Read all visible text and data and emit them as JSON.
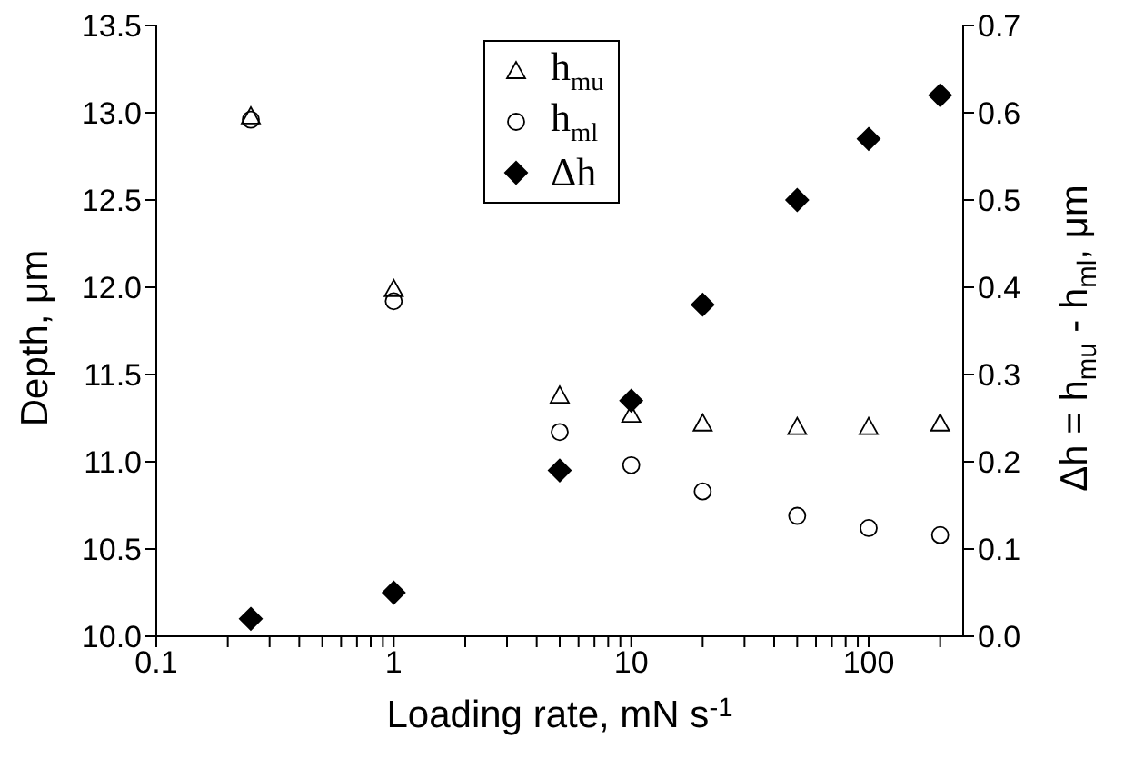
{
  "chart_data": {
    "type": "scatter",
    "xlabel": "Loading rate, mN s$^{-1}$",
    "ylabel": "Depth, μm",
    "y2label": "Δh = h$_{mu}$ - h$_{ml}$, μm",
    "x": [
      0.25,
      1,
      5,
      10,
      20,
      50,
      100,
      200
    ],
    "log": "x",
    "legend": "top",
    "grid": false,
    "xlim": [
      0.1,
      250
    ],
    "xticks": [
      0.1,
      {
        "value": 0.2,
        "label": null
      },
      {
        "value": 0.3,
        "label": null
      },
      {
        "value": 0.4,
        "label": null
      },
      {
        "value": 0.5,
        "label": null
      },
      {
        "value": 0.6,
        "label": null
      },
      {
        "value": 0.7,
        "label": null
      },
      {
        "value": 0.8,
        "label": null
      },
      {
        "value": 0.9,
        "label": null
      },
      1,
      {
        "value": 2,
        "label": null
      },
      {
        "value": 3,
        "label": null
      },
      {
        "value": 4,
        "label": null
      },
      {
        "value": 5,
        "label": null
      },
      {
        "value": 6,
        "label": null
      },
      {
        "value": 7,
        "label": null
      },
      {
        "value": 8,
        "label": null
      },
      {
        "value": 9,
        "label": null
      },
      10,
      {
        "value": 20,
        "label": null
      },
      {
        "value": 30,
        "label": null
      },
      {
        "value": 40,
        "label": null
      },
      {
        "value": 50,
        "label": null
      },
      {
        "value": 60,
        "label": null
      },
      {
        "value": 70,
        "label": null
      },
      {
        "value": 80,
        "label": null
      },
      {
        "value": 90,
        "label": null
      },
      100,
      {
        "value": 200,
        "label": null
      }
    ],
    "ylim": [
      10.0,
      13.5
    ],
    "yticks": [
      {
        "value": 10.0,
        "label": "10.0"
      },
      {
        "value": 10.5,
        "label": "10.5"
      },
      {
        "value": 11.0,
        "label": "11.0"
      },
      {
        "value": 11.5,
        "label": "11.5"
      },
      {
        "value": 12.0,
        "label": "12.0"
      },
      {
        "value": 12.5,
        "label": "12.5"
      },
      {
        "value": 13.0,
        "label": "13.0"
      },
      {
        "value": 13.5,
        "label": "13.5"
      }
    ],
    "y2lim": [
      0.0,
      0.7
    ],
    "y2ticks": [
      {
        "value": 0.0,
        "label": "0.0"
      },
      0.1,
      0.2,
      0.3,
      0.4,
      0.5,
      0.6,
      0.7
    ],
    "series": [
      {
        "name": "h$_{mu}$",
        "color": "#000000",
        "marker": "triangle",
        "values": [
          12.98,
          11.99,
          11.38,
          11.27,
          11.22,
          11.2,
          11.2,
          11.22
        ]
      },
      {
        "name": "h$_{ml}$",
        "color": "#000000",
        "marker": "circle",
        "values": [
          12.96,
          11.92,
          11.17,
          10.98,
          10.83,
          10.69,
          10.62,
          10.58
        ]
      },
      {
        "name": "Δh",
        "color": "#000000",
        "marker": "diamond",
        "axis": "y2",
        "values": [
          0.02,
          0.05,
          0.19,
          0.27,
          0.38,
          0.5,
          0.57,
          0.62
        ]
      }
    ]
  }
}
